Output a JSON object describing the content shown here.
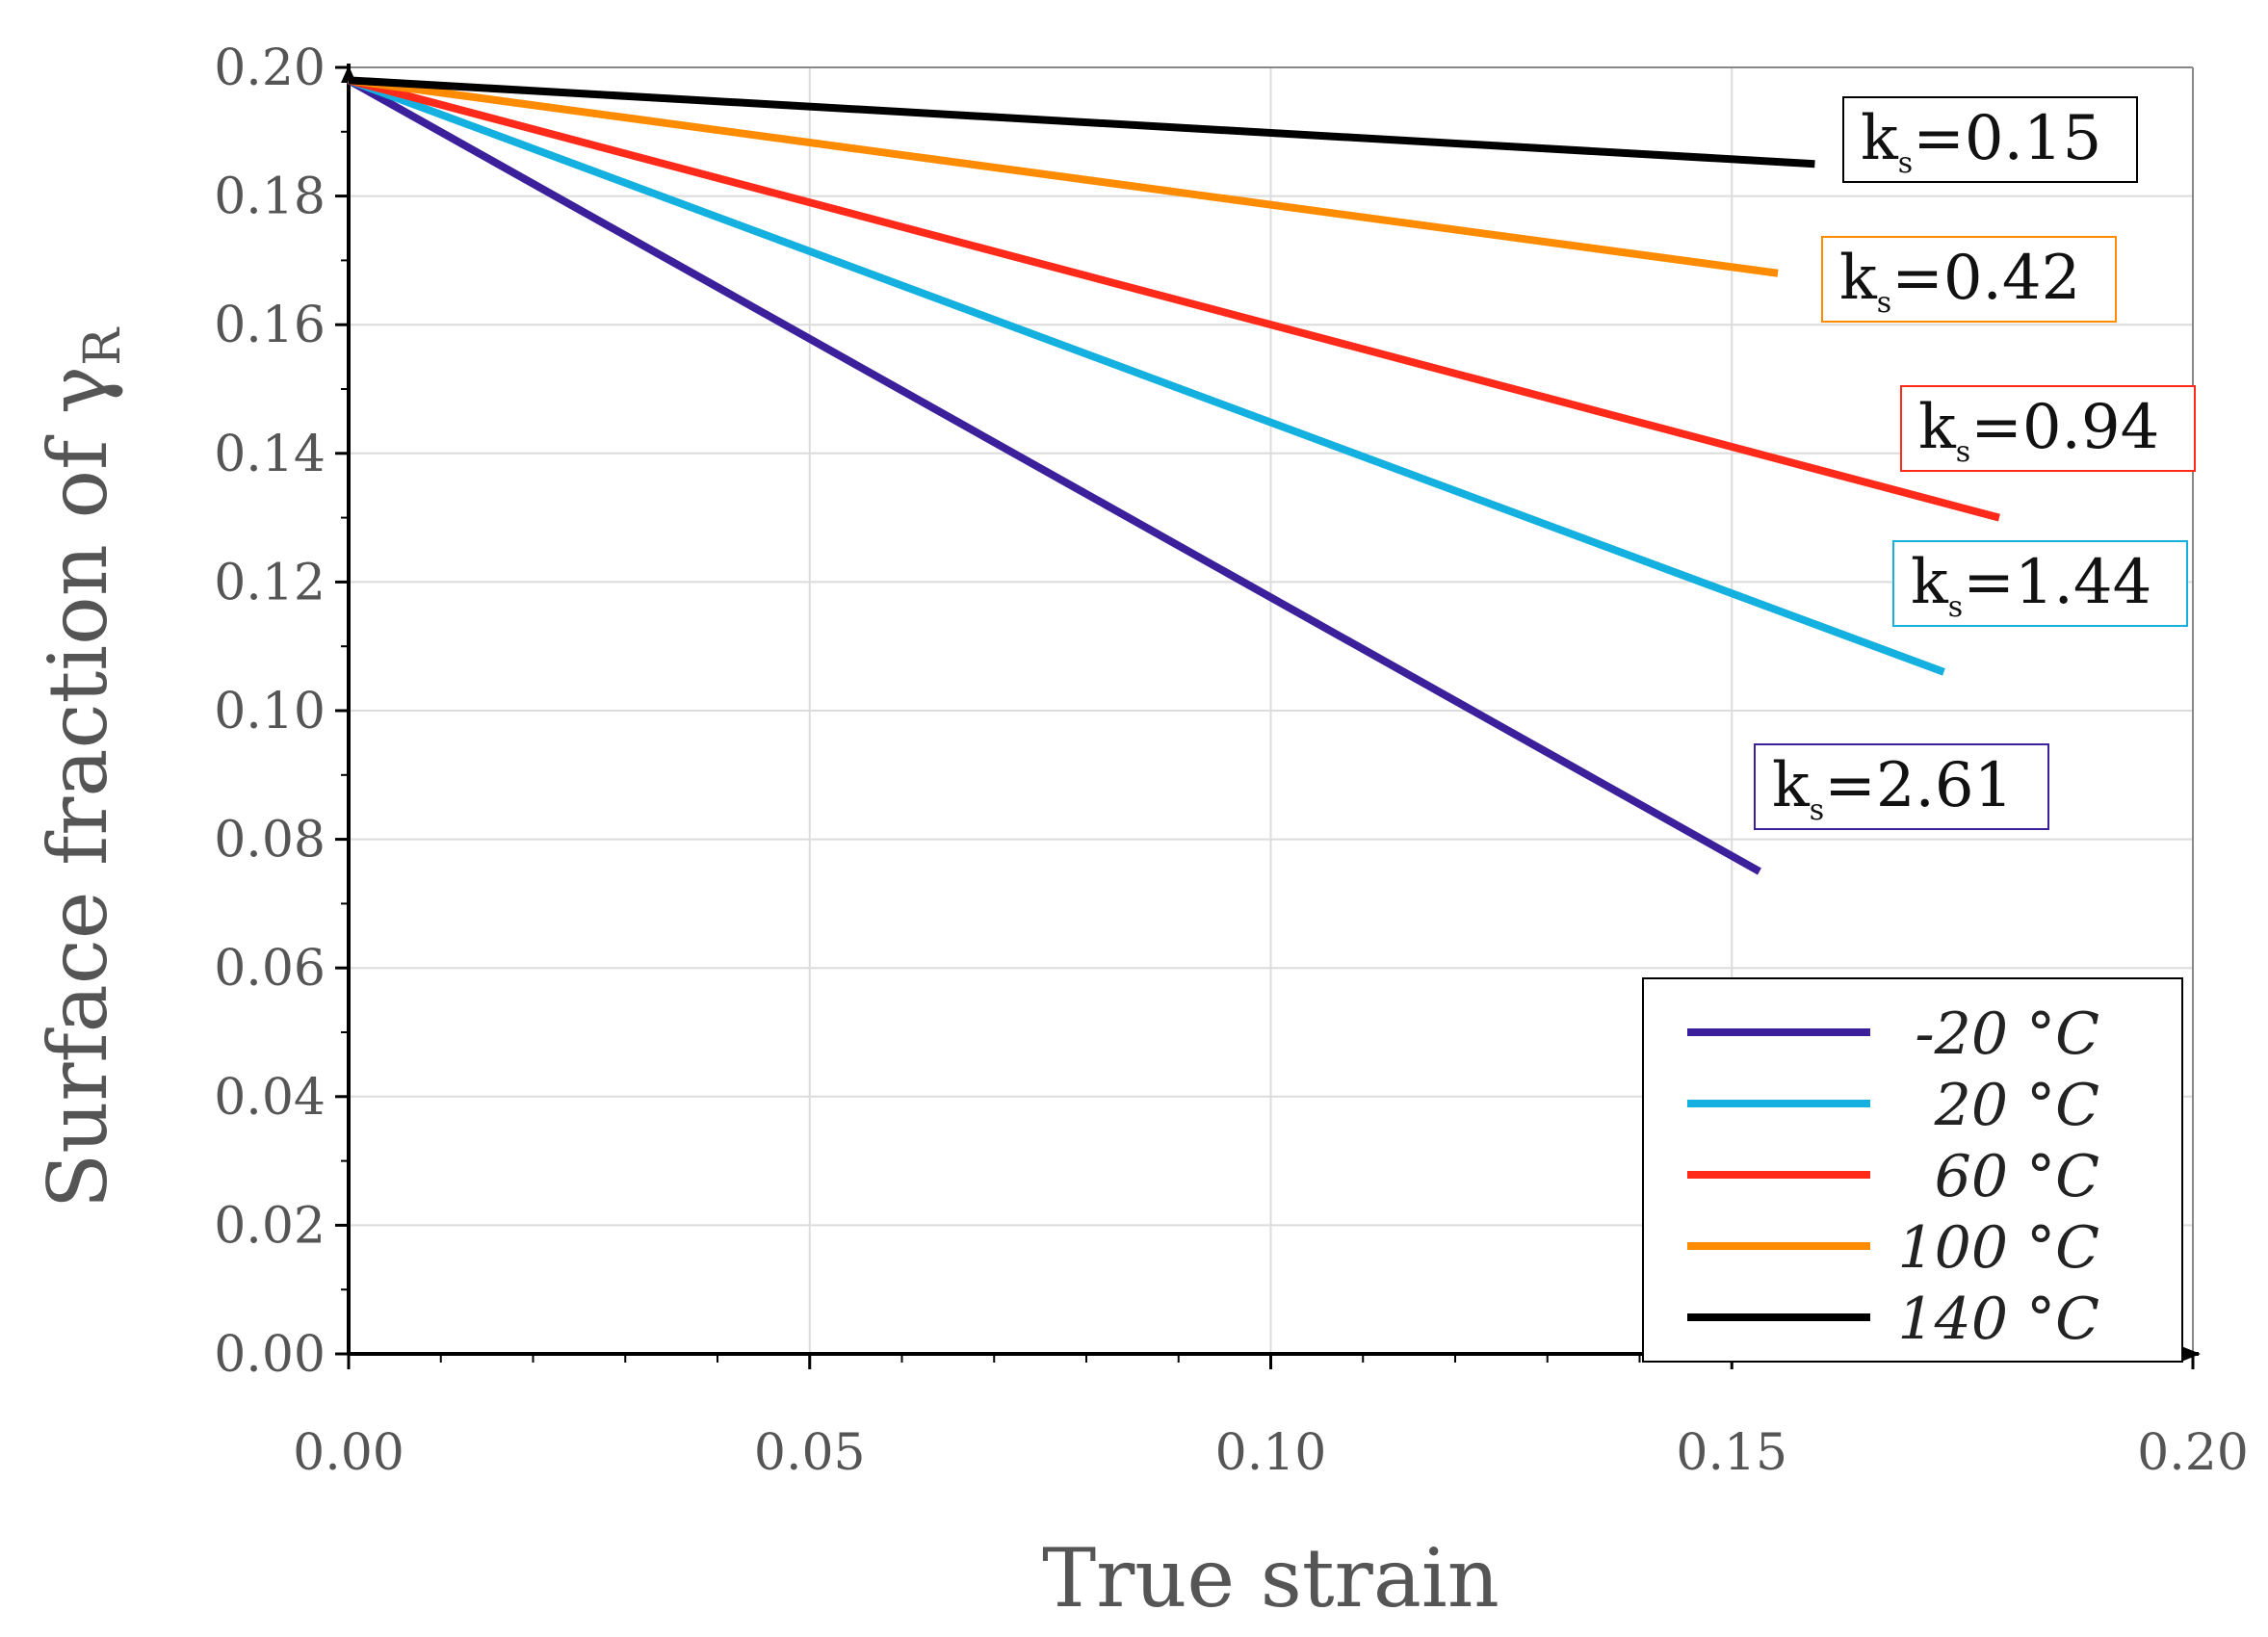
{
  "chart_data": {
    "type": "line",
    "title": "",
    "xlabel": "True strain",
    "ylabel": "Surface fraction of γ",
    "ylabel_subscript": "R",
    "xlim": [
      0.0,
      0.2
    ],
    "ylim": [
      0.0,
      0.2
    ],
    "x_ticks": [
      "0.00",
      "0.05",
      "0.10",
      "0.15",
      "0.20"
    ],
    "y_ticks": [
      "0.00",
      "0.02",
      "0.04",
      "0.06",
      "0.08",
      "0.10",
      "0.12",
      "0.14",
      "0.16",
      "0.18",
      "0.20"
    ],
    "grid": true,
    "legend_position": "bottom-right",
    "series": [
      {
        "name": "-20 °C",
        "color": "#3b1f9b",
        "x": [
          0.0,
          0.153
        ],
        "y": [
          0.198,
          0.075
        ],
        "k_prefix": "k",
        "k_sub": "s",
        "k_value": "=2.61"
      },
      {
        "name": " 20 °C",
        "color": "#14b0e0",
        "x": [
          0.0,
          0.173
        ],
        "y": [
          0.198,
          0.106
        ],
        "k_prefix": "k",
        "k_sub": "s",
        "k_value": "=1.44"
      },
      {
        "name": "60 °C",
        "color": "#ff2a1a",
        "x": [
          0.0,
          0.179
        ],
        "y": [
          0.198,
          0.13
        ],
        "k_prefix": "k",
        "k_sub": "s",
        "k_value": "=0.94"
      },
      {
        "name": "100 °C",
        "color": "#ff8c00",
        "x": [
          0.0,
          0.155
        ],
        "y": [
          0.198,
          0.168
        ],
        "k_prefix": "k",
        "k_sub": "s",
        "k_value": "=0.42"
      },
      {
        "name": "140 °C",
        "color": "#000000",
        "x": [
          0.0,
          0.159
        ],
        "y": [
          0.198,
          0.185
        ],
        "k_prefix": "k",
        "k_sub": "s",
        "k_value": "=0.15"
      }
    ]
  }
}
